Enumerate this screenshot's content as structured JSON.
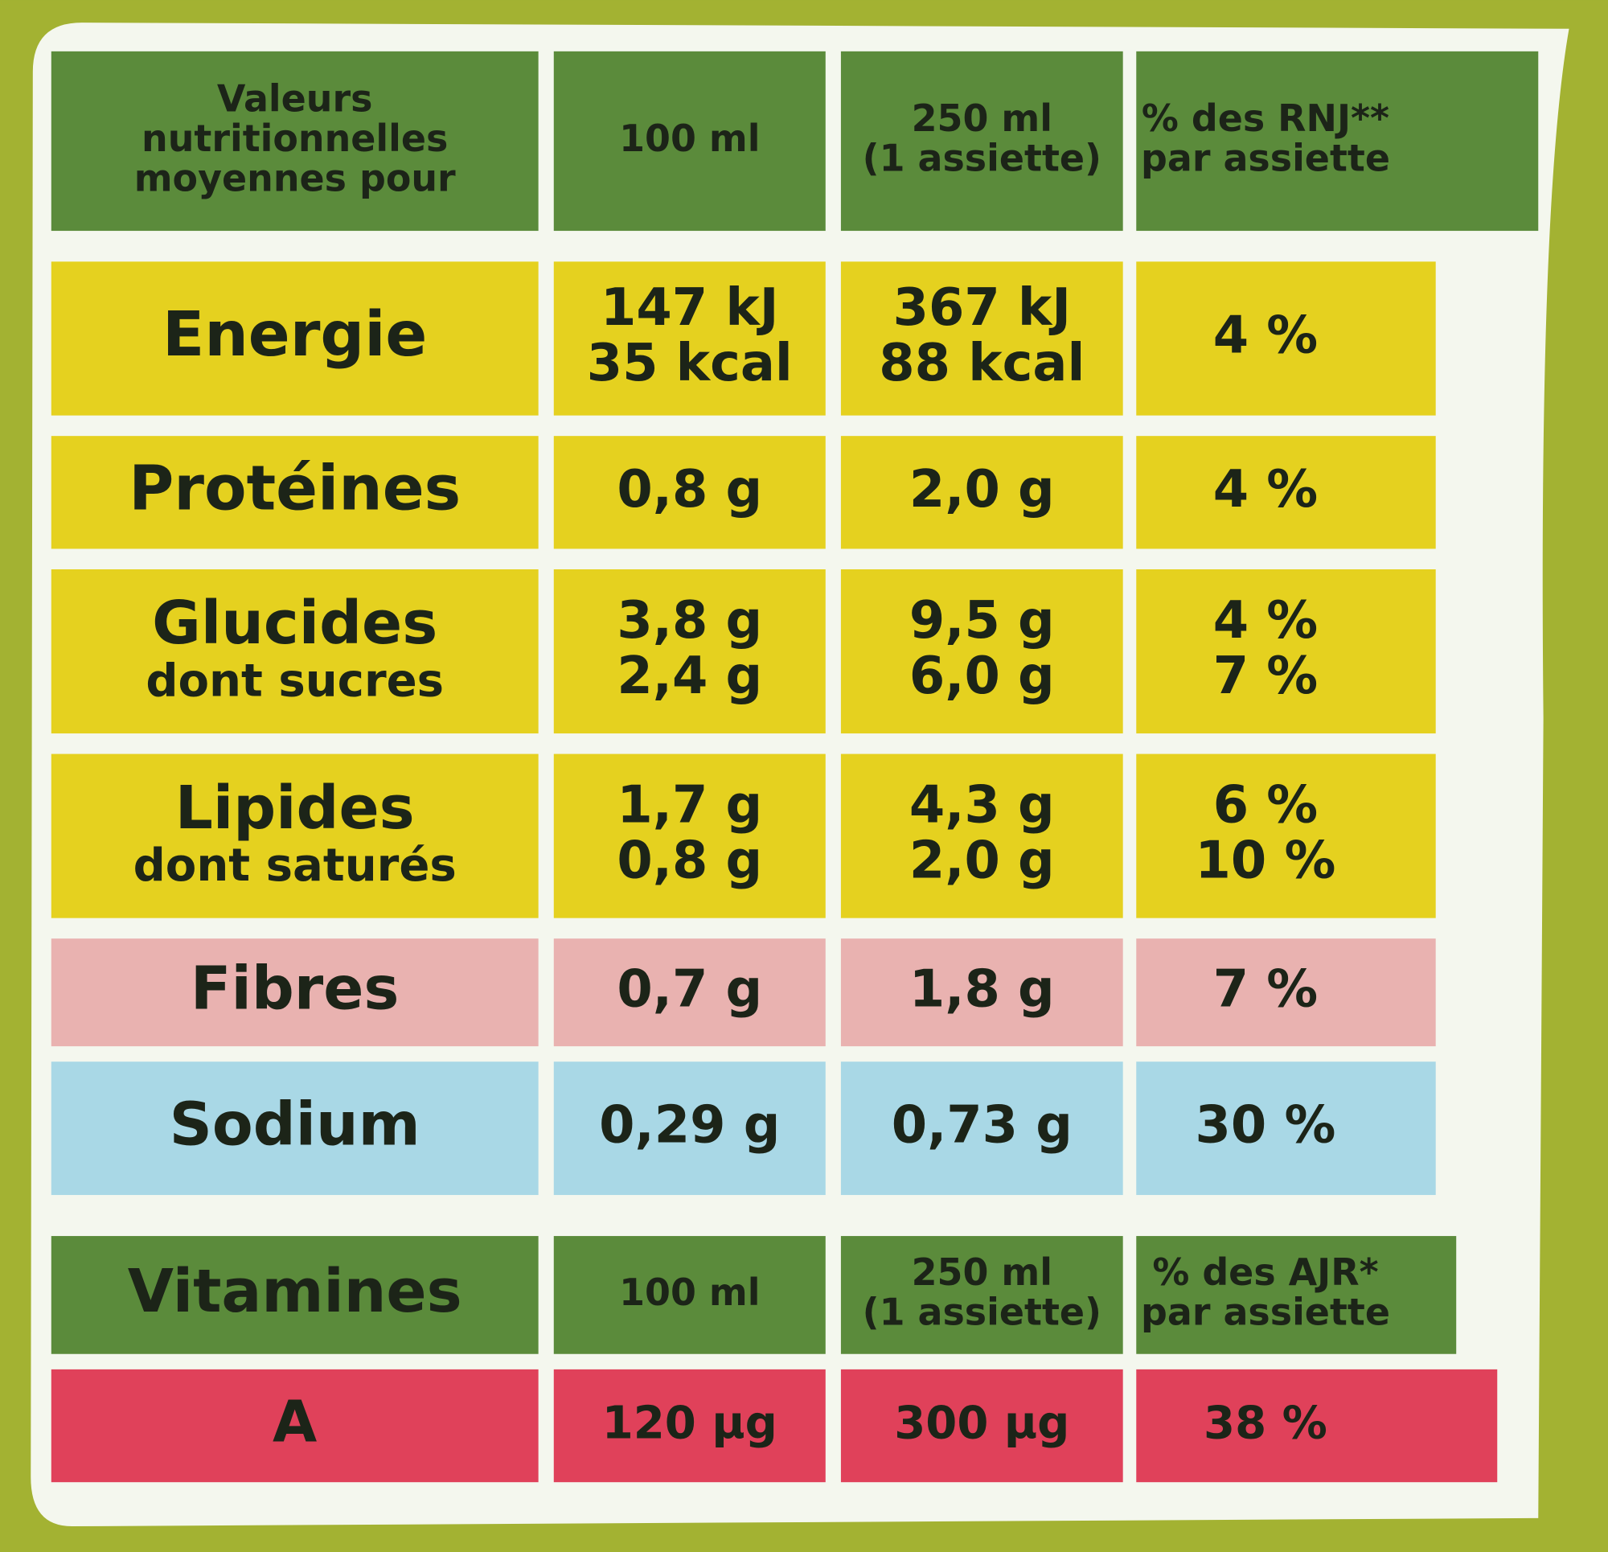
{
  "table": {
    "header": [
      [
        "Valeurs",
        "nutritionnelles",
        "moyennes pour"
      ],
      [
        "100 ml"
      ],
      [
        "250 ml",
        "(1 assiette)"
      ],
      [
        "% des RNJ**",
        "par assiette"
      ]
    ],
    "rows": [
      [
        [
          "Energie"
        ],
        [
          "147 kJ",
          "35 kcal"
        ],
        [
          "367 kJ",
          "88 kcal"
        ],
        [
          "4 %"
        ]
      ],
      [
        [
          "Protéines"
        ],
        [
          "0,8 g"
        ],
        [
          "2,0 g"
        ],
        [
          "4 %"
        ]
      ],
      [
        [
          "Glucides",
          "dont sucres"
        ],
        [
          "3,8 g",
          "2,4 g"
        ],
        [
          "9,5 g",
          "6,0 g"
        ],
        [
          "4 %",
          "7 %"
        ]
      ],
      [
        [
          "Lipides",
          "dont saturés"
        ],
        [
          "1,7 g",
          "0,8 g"
        ],
        [
          "4,3 g",
          "2,0 g"
        ],
        [
          "6 %",
          "10 %"
        ]
      ],
      [
        [
          "Fibres"
        ],
        [
          "0,7 g"
        ],
        [
          "1,8 g"
        ],
        [
          "7 %"
        ]
      ],
      [
        [
          "Sodium"
        ],
        [
          "0,29 g"
        ],
        [
          "0,73 g"
        ],
        [
          "30 %"
        ]
      ]
    ]
  },
  "vitamins": {
    "header": [
      [
        "Vitamines"
      ],
      [
        "100 ml"
      ],
      [
        "250 ml",
        "(1 assiette)"
      ],
      [
        "% des AJR*",
        "par assiette"
      ]
    ],
    "rows": [
      [
        [
          "A"
        ],
        [
          "120 µg"
        ],
        [
          "300 µg"
        ],
        [
          "38 %"
        ]
      ]
    ]
  }
}
